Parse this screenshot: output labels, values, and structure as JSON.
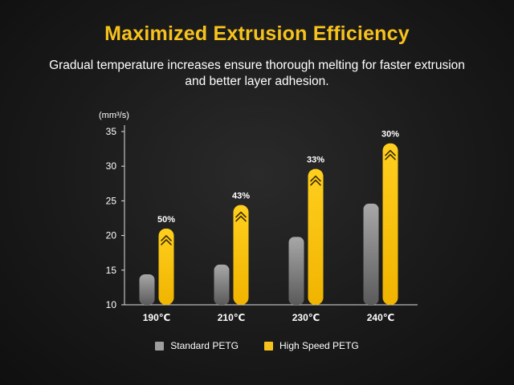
{
  "title": "Maximized Extrusion Efficiency",
  "subtitle": "Gradual temperature increases ensure thorough melting for faster extrusion and better layer adhesion.",
  "chart_data": {
    "type": "bar",
    "ylabel": "(mm³/s)",
    "ylim": [
      10,
      35
    ],
    "yticks": [
      10,
      15,
      20,
      25,
      30,
      35
    ],
    "categories": [
      "190℃",
      "210℃",
      "230℃",
      "240℃"
    ],
    "series": [
      {
        "name": "Standard PETG",
        "values": [
          14.4,
          15.8,
          19.8,
          24.6
        ],
        "color": "#9e9e9e"
      },
      {
        "name": "High Speed PETG",
        "values": [
          21,
          24.4,
          29.6,
          33.3
        ],
        "color": "#f7c21c"
      }
    ],
    "annotations": [
      "50%",
      "43%",
      "33%",
      "30%"
    ],
    "legend_position": "bottom",
    "grid": false
  }
}
